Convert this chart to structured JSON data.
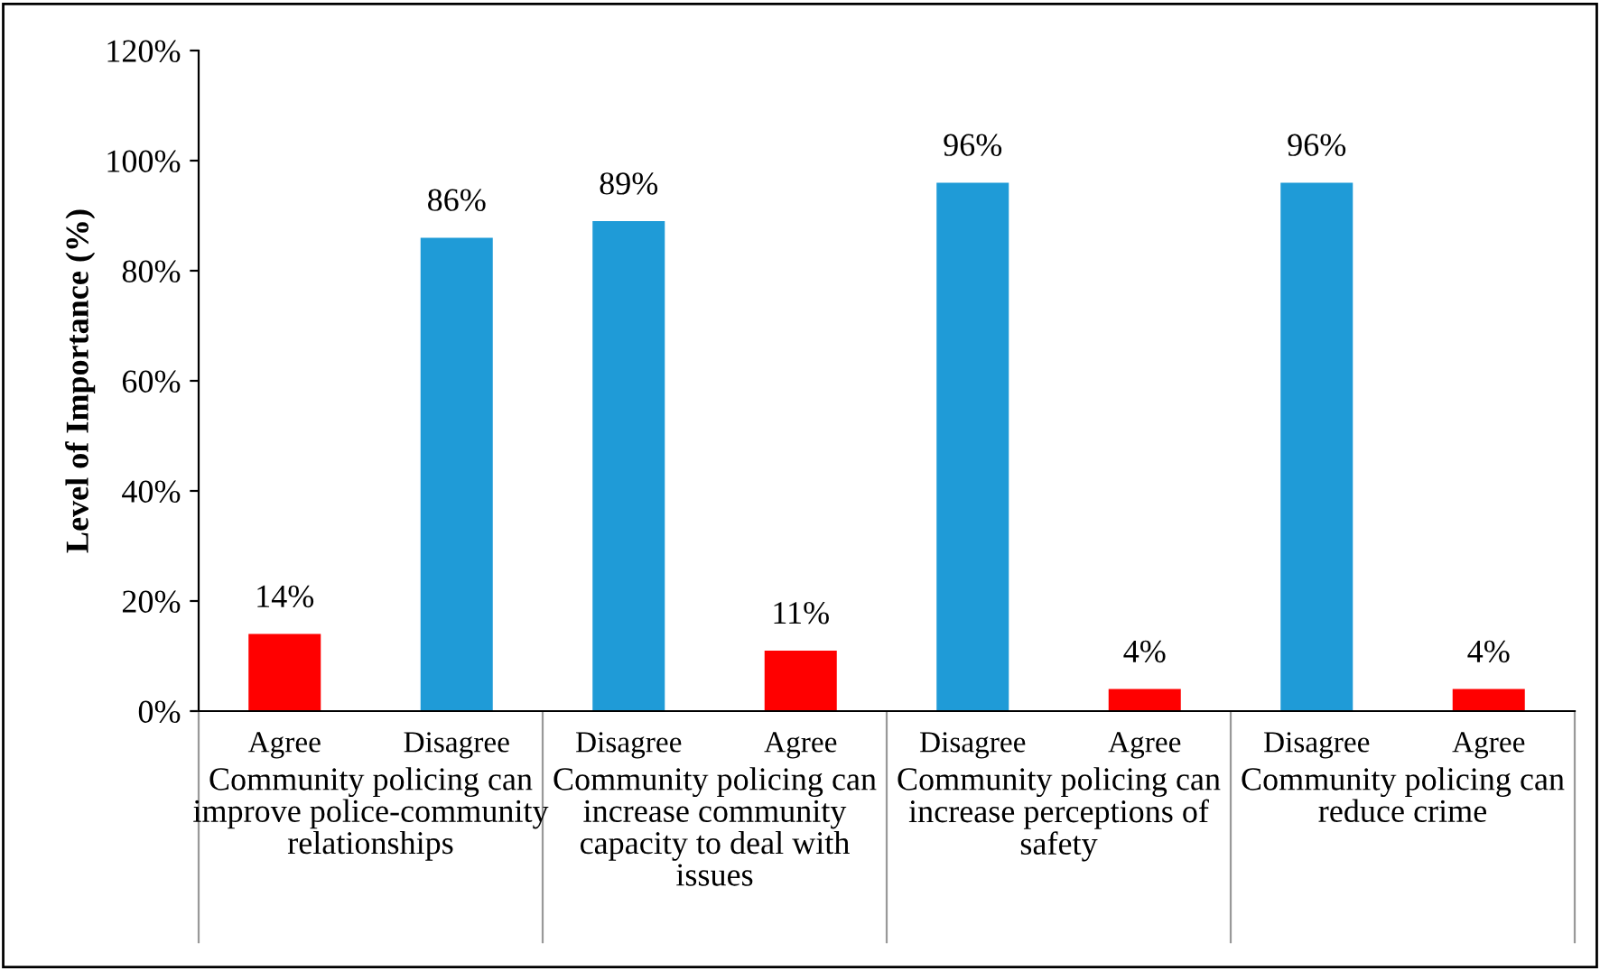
{
  "chart_data": {
    "type": "bar",
    "ylabel": "Level of Importance (%)",
    "categories": [
      "Agree",
      "Disagree",
      "Disagree",
      "Agree",
      "Disagree",
      "Agree",
      "Disagree",
      "Agree"
    ],
    "values": [
      14,
      86,
      89,
      11,
      96,
      4,
      96,
      4
    ],
    "colors": [
      "#ff0000",
      "#1f9bd7",
      "#1f9bd7",
      "#ff0000",
      "#1f9bd7",
      "#ff0000",
      "#1f9bd7",
      "#ff0000"
    ],
    "value_labels": [
      "14%",
      "86%",
      "89%",
      "11%",
      "96%",
      "4%",
      "96%",
      "4%"
    ],
    "ylim": [
      0,
      120
    ],
    "yticks": [
      {
        "value": 0,
        "label": "0%"
      },
      {
        "value": 20,
        "label": "20%"
      },
      {
        "value": 40,
        "label": "40%"
      },
      {
        "value": 60,
        "label": "60%"
      },
      {
        "value": 80,
        "label": "80%"
      },
      {
        "value": 100,
        "label": "100%"
      },
      {
        "value": 120,
        "label": "120%"
      }
    ],
    "annotations": [
      "Community policing can improve police-community relationships",
      "Community policing can increase community capacity to deal with issues",
      "Community policing can increase perceptions of safety",
      "Community policing can reduce crime"
    ],
    "grid": false,
    "legend": false
  }
}
